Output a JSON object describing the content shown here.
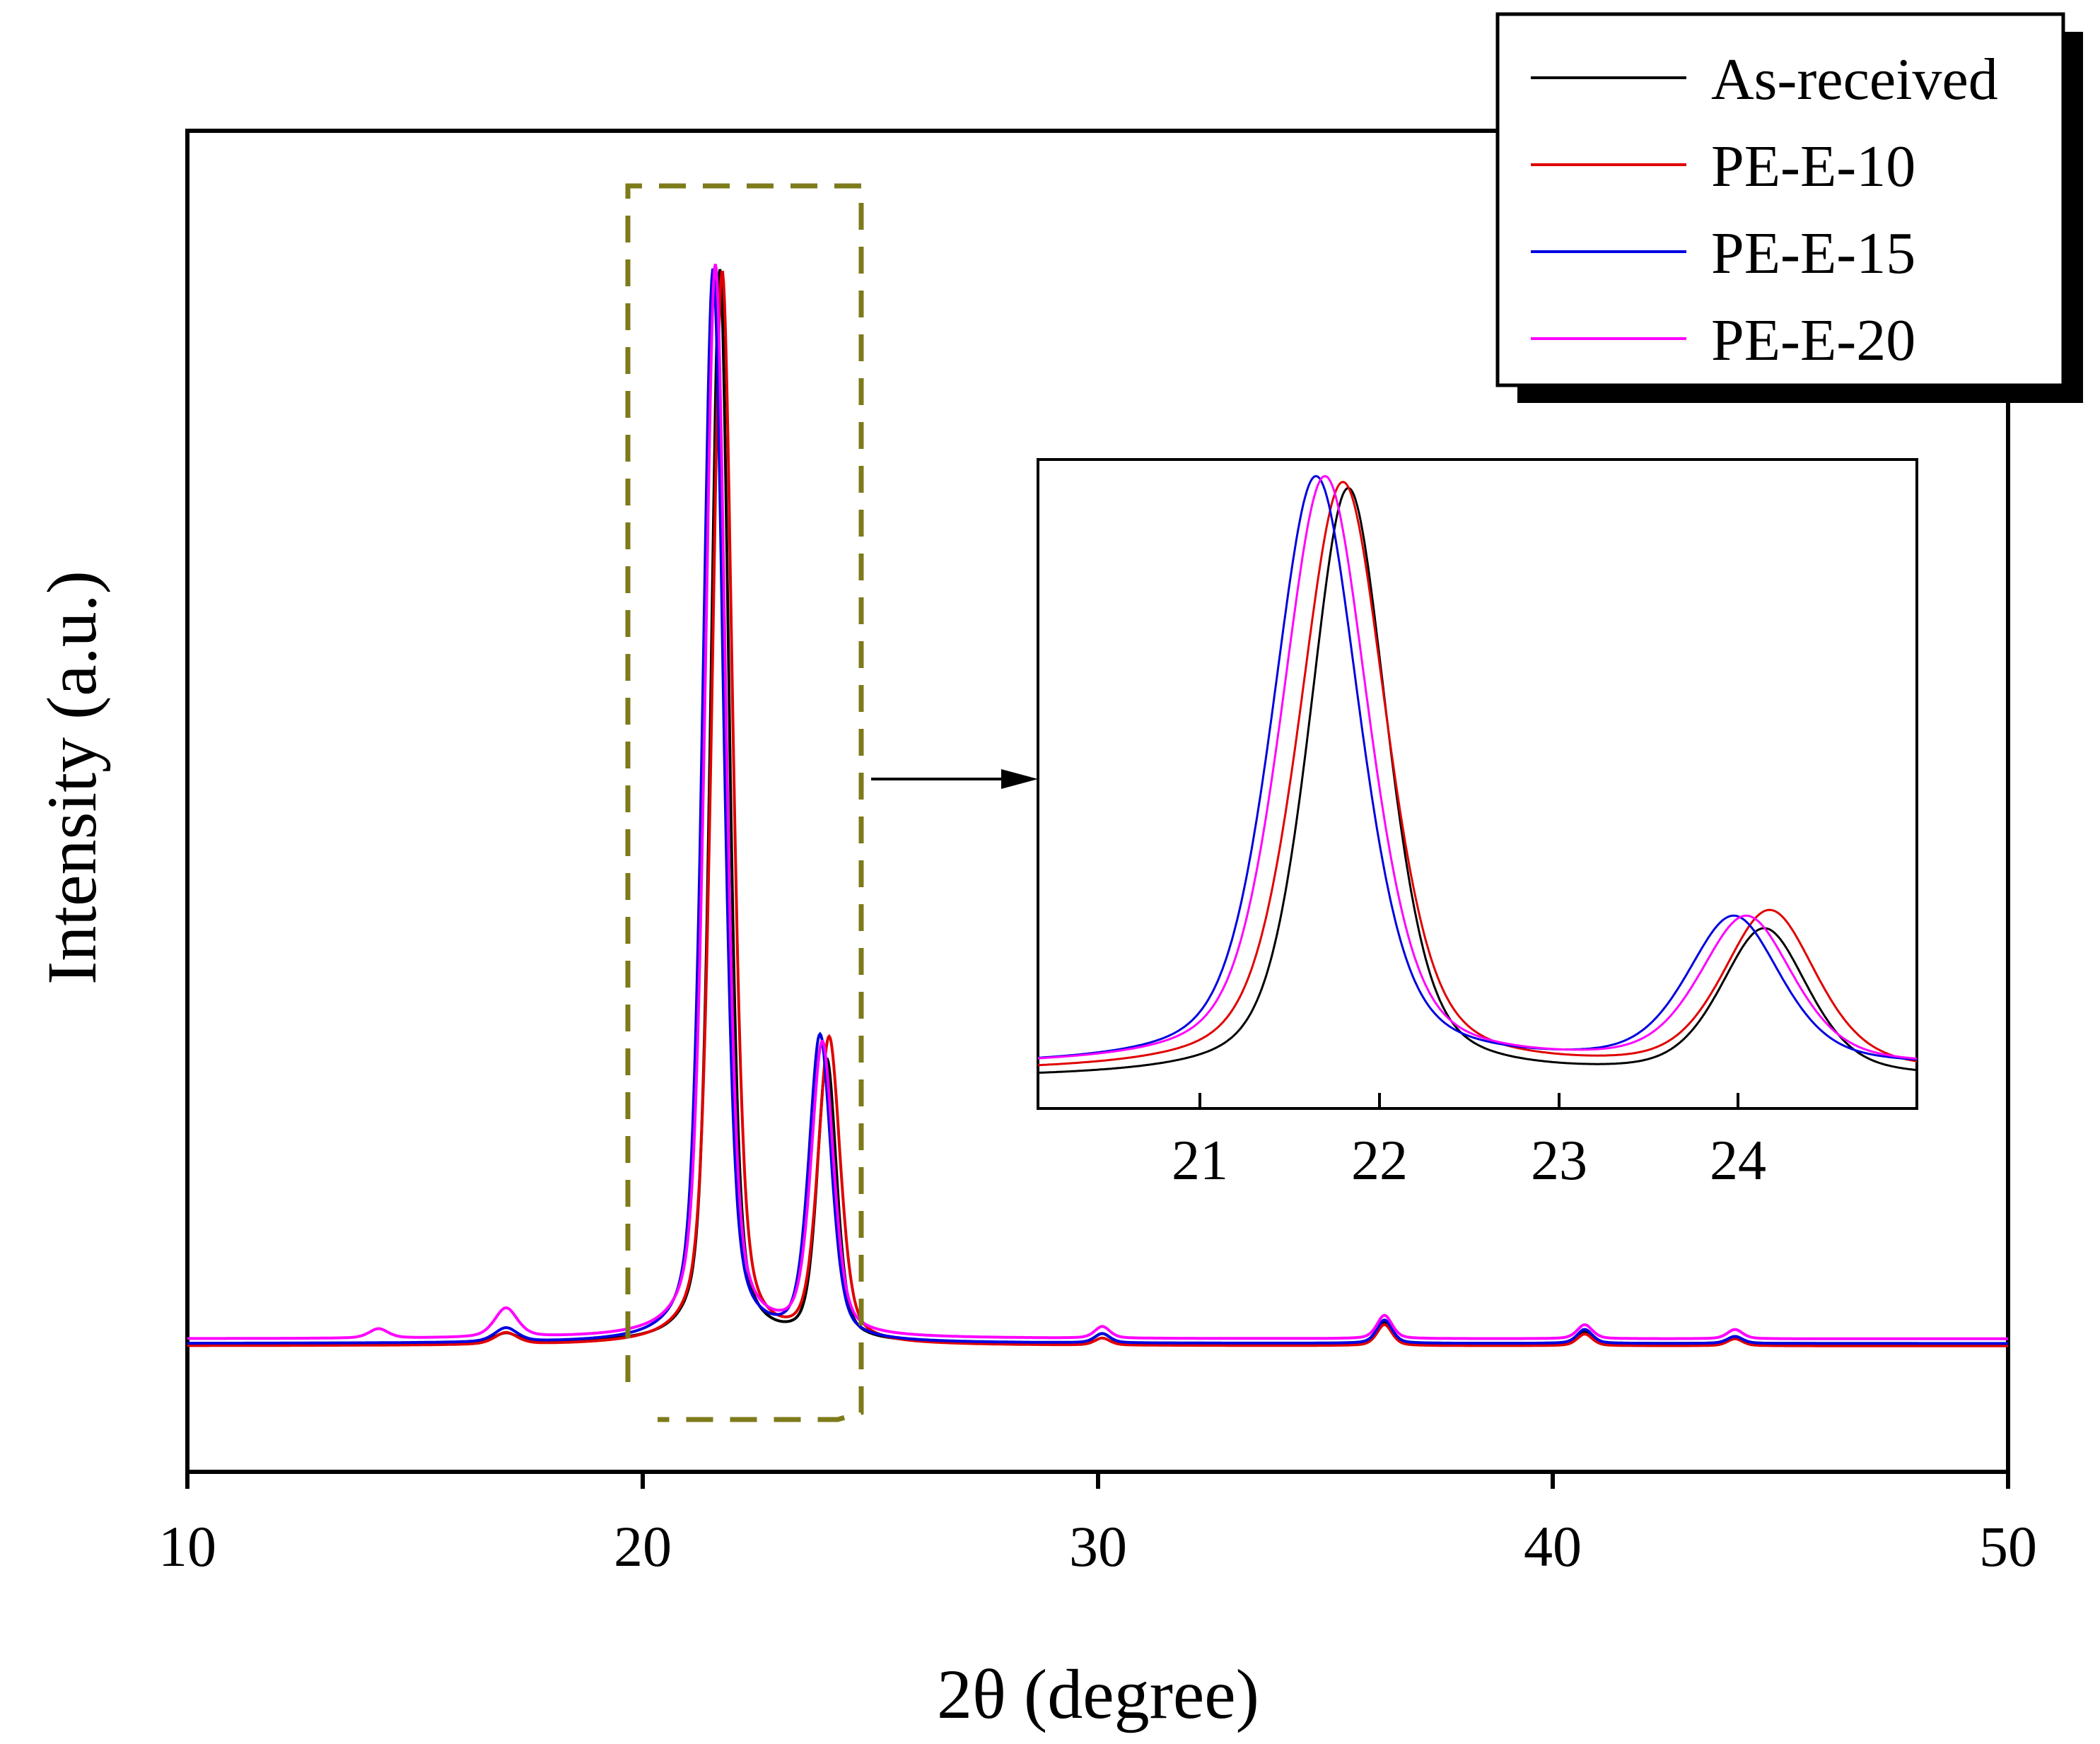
{
  "chart_data": [
    {
      "id": "main",
      "type": "line",
      "title": "",
      "xlabel": "2θ (degree)",
      "ylabel": "Intensity (a.u.)",
      "xlim": [
        10,
        50
      ],
      "ylim": [
        0,
        1.15
      ],
      "x_ticks": [
        "10",
        "20",
        "30",
        "40",
        "50"
      ],
      "y_ticks": [],
      "legend_position": "top-right",
      "series": [
        {
          "name": "As-received",
          "color": "#000000",
          "baseline": 0.11,
          "peaks": [
            [
              17.0,
              0.008,
              0.3
            ],
            [
              21.7,
              0.92,
              0.24
            ],
            [
              24.05,
              0.24,
              0.25
            ],
            [
              30.1,
              0.008,
              0.2
            ],
            [
              36.3,
              0.018,
              0.2
            ],
            [
              40.7,
              0.01,
              0.2
            ],
            [
              44.0,
              0.006,
              0.2
            ]
          ]
        },
        {
          "name": "PE-E-10",
          "color": "#e00000",
          "baseline": 0.108,
          "peaks": [
            [
              17.0,
              0.01,
              0.3
            ],
            [
              21.75,
              0.92,
              0.27
            ],
            [
              24.1,
              0.26,
              0.29
            ],
            [
              30.1,
              0.006,
              0.2
            ],
            [
              36.3,
              0.018,
              0.2
            ],
            [
              40.7,
              0.01,
              0.2
            ],
            [
              44.0,
              0.006,
              0.2
            ]
          ]
        },
        {
          "name": "PE-E-15",
          "color": "#0000e0",
          "baseline": 0.11,
          "peaks": [
            [
              17.0,
              0.012,
              0.3
            ],
            [
              21.55,
              0.92,
              0.27
            ],
            [
              23.9,
              0.26,
              0.29
            ],
            [
              30.1,
              0.008,
              0.2
            ],
            [
              36.3,
              0.02,
              0.2
            ],
            [
              40.7,
              0.012,
              0.2
            ],
            [
              44.0,
              0.006,
              0.2
            ]
          ]
        },
        {
          "name": "PE-E-20",
          "color": "#ff00ff",
          "baseline": 0.114,
          "peaks": [
            [
              14.2,
              0.008,
              0.25
            ],
            [
              17.0,
              0.025,
              0.3
            ],
            [
              21.6,
              0.92,
              0.27
            ],
            [
              23.95,
              0.25,
              0.29
            ],
            [
              30.1,
              0.01,
              0.2
            ],
            [
              36.3,
              0.02,
              0.2
            ],
            [
              40.7,
              0.012,
              0.2
            ],
            [
              44.0,
              0.008,
              0.2
            ]
          ]
        }
      ]
    },
    {
      "id": "inset",
      "type": "line",
      "title": "",
      "xlabel": "",
      "ylabel": "",
      "xlim": [
        20.0,
        24.9
      ],
      "ylim": [
        -0.05,
        1.05
      ],
      "x_ticks": [
        "21",
        "22",
        "23",
        "24"
      ],
      "y_ticks": [],
      "series": [
        {
          "name": "As-received",
          "color": "#000000",
          "baseline": 0.0,
          "peaks": [
            [
              21.73,
              1.0,
              0.26
            ],
            [
              24.05,
              0.25,
              0.29
            ]
          ]
        },
        {
          "name": "PE-E-10",
          "color": "#e00000",
          "baseline": 0.01,
          "peaks": [
            [
              21.7,
              1.0,
              0.29
            ],
            [
              24.08,
              0.27,
              0.31
            ]
          ]
        },
        {
          "name": "PE-E-15",
          "color": "#0000e0",
          "baseline": 0.02,
          "peaks": [
            [
              21.55,
              1.0,
              0.29
            ],
            [
              23.88,
              0.25,
              0.31
            ]
          ]
        },
        {
          "name": "PE-E-20",
          "color": "#ff00ff",
          "baseline": 0.02,
          "peaks": [
            [
              21.6,
              1.0,
              0.29
            ],
            [
              23.95,
              0.25,
              0.31
            ]
          ]
        }
      ]
    }
  ]
}
